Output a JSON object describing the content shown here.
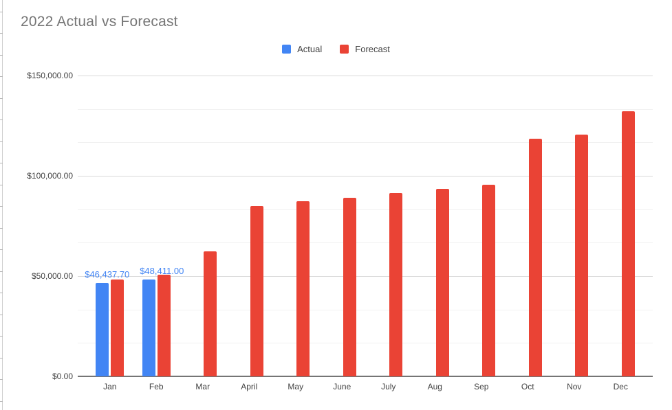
{
  "chart_data": {
    "type": "bar",
    "title": "2022 Actual vs Forecast",
    "categories": [
      "Jan",
      "Feb",
      "Mar",
      "April",
      "May",
      "June",
      "July",
      "Aug",
      "Sep",
      "Oct",
      "Nov",
      "Dec"
    ],
    "series": [
      {
        "name": "Actual",
        "color": "#4285F4",
        "values": [
          46437.7,
          48411.0,
          null,
          null,
          null,
          null,
          null,
          null,
          null,
          null,
          null,
          null
        ]
      },
      {
        "name": "Forecast",
        "color": "#EA4335",
        "values": [
          48300,
          50800,
          62300,
          85000,
          87500,
          89000,
          91400,
          93400,
          95500,
          118600,
          120600,
          132300
        ]
      }
    ],
    "data_labels": [
      {
        "series": "Actual",
        "category": "Jan",
        "text": "$46,437.70"
      },
      {
        "series": "Actual",
        "category": "Feb",
        "text": "$48,411.00"
      }
    ],
    "y_axis": {
      "tick_labels": [
        "$0.00",
        "$50,000.00",
        "$100,000.00",
        "$150,000.00"
      ],
      "tick_values": [
        0,
        50000,
        100000,
        150000
      ],
      "ylim": [
        0,
        150000
      ],
      "minor_divisions_per_major": 3
    },
    "legend": {
      "position": "top",
      "items": [
        {
          "label": "Actual",
          "color": "#4285F4"
        },
        {
          "label": "Forecast",
          "color": "#EA4335"
        }
      ]
    },
    "grid": true
  },
  "colors": {
    "title_text": "#757575",
    "axis_label_text": "#424242",
    "data_label_text": "#4285F4",
    "major_gridline": "#d9d9d9",
    "minor_gridline": "#f1f1f1",
    "axis_baseline": "#757575",
    "background": "#ffffff"
  }
}
